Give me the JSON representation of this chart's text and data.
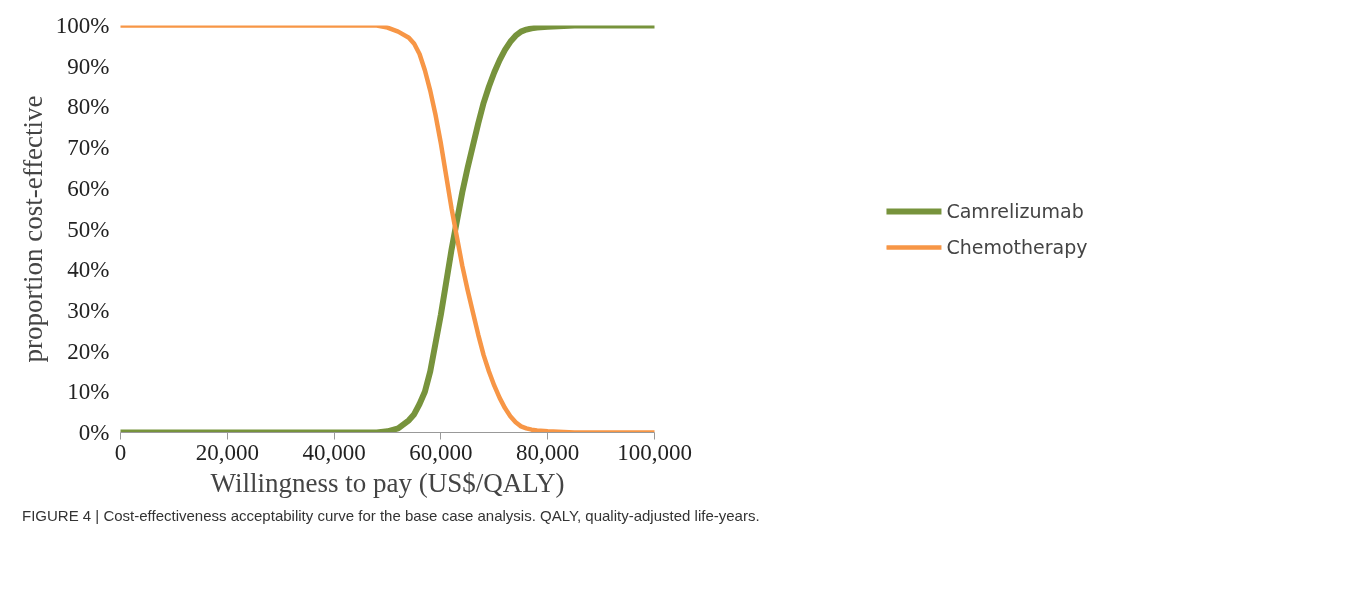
{
  "chart_data": {
    "type": "line",
    "xlabel": "Willingness to pay (US$/QALY)",
    "ylabel": "proportion cost-effective",
    "annotations": [
      "FIGURE 4 | Cost-effectiveness acceptability curve for the base case analysis. QALY, quality-adjusted life-years."
    ],
    "x": [
      0,
      10000,
      20000,
      30000,
      40000,
      46000,
      48000,
      50000,
      52000,
      54000,
      55000,
      56000,
      57000,
      58000,
      59000,
      60000,
      61000,
      62000,
      63000,
      64000,
      65000,
      66000,
      67000,
      68000,
      69000,
      70000,
      71000,
      72000,
      73000,
      74000,
      75000,
      76000,
      77000,
      78000,
      80000,
      85000,
      90000,
      100000
    ],
    "series": [
      {
        "name": "Camrelizumab",
        "color": "#77933c",
        "values": [
          0,
          0,
          0,
          0,
          0,
          0,
          0,
          0.3,
          1,
          3,
          4.5,
          7,
          10,
          15,
          22,
          29,
          37,
          45,
          52,
          59,
          65,
          70.5,
          76,
          81,
          85,
          88.5,
          91.5,
          94,
          96,
          97.5,
          98.5,
          99,
          99.3,
          99.5,
          99.7,
          100,
          100,
          100
        ]
      },
      {
        "name": "Chemotherapy",
        "color": "#f79646",
        "values": [
          100,
          100,
          100,
          100,
          100,
          100,
          100,
          99.5,
          98.5,
          97,
          95.5,
          93,
          89,
          84,
          78,
          71,
          63,
          55,
          48,
          41,
          35,
          29.5,
          24,
          19,
          15,
          11.5,
          8.5,
          6,
          4,
          2.5,
          1.5,
          1,
          0.7,
          0.5,
          0.3,
          0,
          0,
          0
        ]
      }
    ],
    "xlim": [
      0,
      100000
    ],
    "xticks": [
      {
        "value": 0,
        "label": "0"
      },
      {
        "value": 20000,
        "label": "20,000"
      },
      {
        "value": 40000,
        "label": "40,000"
      },
      {
        "value": 60000,
        "label": "60,000"
      },
      {
        "value": 80000,
        "label": "80,000"
      },
      {
        "value": 100000,
        "label": "100,000"
      }
    ],
    "ylim": [
      0,
      100
    ],
    "yticks": [
      {
        "value": 0,
        "label": "0%"
      },
      {
        "value": 10,
        "label": "10%"
      },
      {
        "value": 20,
        "label": "20%"
      },
      {
        "value": 30,
        "label": "30%"
      },
      {
        "value": 40,
        "label": "40%"
      },
      {
        "value": 50,
        "label": "50%"
      },
      {
        "value": 60,
        "label": "60%"
      },
      {
        "value": 70,
        "label": "70%"
      },
      {
        "value": 80,
        "label": "80%"
      },
      {
        "value": 90,
        "label": "90%"
      },
      {
        "value": 100,
        "label": "100%"
      }
    ],
    "grid": false,
    "legend": "right",
    "marker": "none",
    "line_style": "solid"
  }
}
